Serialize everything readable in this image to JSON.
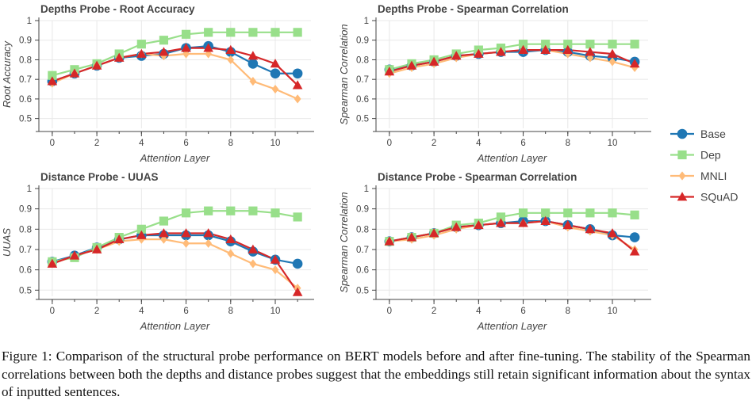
{
  "legend": [
    {
      "name": "Base",
      "color": "#1f77b4",
      "marker": "circle"
    },
    {
      "name": "Dep",
      "color": "#98df8a",
      "marker": "square"
    },
    {
      "name": "MNLI",
      "color": "#ffbb78",
      "marker": "diamond"
    },
    {
      "name": "SQuAD",
      "color": "#d62728",
      "marker": "triangle"
    }
  ],
  "caption": {
    "label": "Figure 1:",
    "text": "Comparison of the structural probe performance on BERT models before and after fine-tuning. The stability of the Spearman correlations between both the depths and distance probes suggest that the embeddings still retain significant information about the syntax of inputted sentences."
  },
  "chart_data": [
    {
      "type": "line",
      "title": "Depths Probe - Root Accuracy",
      "xlabel": "Attention Layer",
      "ylabel": "Root Accuracy",
      "x": [
        0,
        1,
        2,
        3,
        4,
        5,
        6,
        7,
        8,
        9,
        10,
        11
      ],
      "xticks": [
        "0",
        "2",
        "4",
        "6",
        "8",
        "10"
      ],
      "yticks": [
        "0.5",
        "0.6",
        "0.7",
        "0.8",
        "0.9",
        "1"
      ],
      "ylim": [
        0.45,
        1.0
      ],
      "xlim": [
        -0.6,
        11.6
      ],
      "series": [
        {
          "name": "Base",
          "values": [
            0.69,
            0.73,
            0.77,
            0.81,
            0.82,
            0.83,
            0.86,
            0.87,
            0.84,
            0.78,
            0.73,
            0.73
          ]
        },
        {
          "name": "Dep",
          "values": [
            0.72,
            0.75,
            0.78,
            0.83,
            0.88,
            0.9,
            0.93,
            0.94,
            0.94,
            0.94,
            0.94,
            0.94
          ]
        },
        {
          "name": "MNLI",
          "values": [
            0.68,
            0.73,
            0.77,
            0.81,
            0.83,
            0.82,
            0.83,
            0.83,
            0.8,
            0.69,
            0.65,
            0.6
          ]
        },
        {
          "name": "SQuAD",
          "values": [
            0.69,
            0.73,
            0.77,
            0.81,
            0.83,
            0.84,
            0.86,
            0.86,
            0.85,
            0.82,
            0.78,
            0.67
          ]
        }
      ]
    },
    {
      "type": "line",
      "title": "Depths Probe - Spearman Correlation",
      "xlabel": "Attention Layer",
      "ylabel": "Spearman Correlation",
      "x": [
        0,
        1,
        2,
        3,
        4,
        5,
        6,
        7,
        8,
        9,
        10,
        11
      ],
      "xticks": [
        "0",
        "2",
        "4",
        "6",
        "8",
        "10"
      ],
      "yticks": [
        "0.5",
        "0.6",
        "0.7",
        "0.8",
        "0.9",
        "1"
      ],
      "ylim": [
        0.45,
        1.0
      ],
      "xlim": [
        -0.6,
        11.6
      ],
      "series": [
        {
          "name": "Base",
          "values": [
            0.75,
            0.77,
            0.79,
            0.82,
            0.83,
            0.84,
            0.84,
            0.85,
            0.84,
            0.82,
            0.81,
            0.79
          ]
        },
        {
          "name": "Dep",
          "values": [
            0.75,
            0.78,
            0.8,
            0.83,
            0.85,
            0.86,
            0.88,
            0.88,
            0.88,
            0.88,
            0.88,
            0.88
          ]
        },
        {
          "name": "MNLI",
          "values": [
            0.73,
            0.76,
            0.78,
            0.81,
            0.83,
            0.84,
            0.85,
            0.85,
            0.83,
            0.81,
            0.79,
            0.76
          ]
        },
        {
          "name": "SQuAD",
          "values": [
            0.74,
            0.77,
            0.79,
            0.82,
            0.83,
            0.84,
            0.85,
            0.85,
            0.85,
            0.84,
            0.83,
            0.78
          ]
        }
      ]
    },
    {
      "type": "line",
      "title": "Distance Probe - UUAS",
      "xlabel": "Attention Layer",
      "ylabel": "UUAS",
      "x": [
        0,
        1,
        2,
        3,
        4,
        5,
        6,
        7,
        8,
        9,
        10,
        11
      ],
      "xticks": [
        "0",
        "2",
        "4",
        "6",
        "8",
        "10"
      ],
      "yticks": [
        "0.5",
        "0.6",
        "0.7",
        "0.8",
        "0.9",
        "1"
      ],
      "ylim": [
        0.47,
        1.0
      ],
      "xlim": [
        -0.6,
        11.6
      ],
      "series": [
        {
          "name": "Base",
          "values": [
            0.64,
            0.67,
            0.71,
            0.75,
            0.77,
            0.77,
            0.77,
            0.77,
            0.74,
            0.69,
            0.65,
            0.63
          ]
        },
        {
          "name": "Dep",
          "values": [
            0.64,
            0.66,
            0.71,
            0.76,
            0.8,
            0.84,
            0.88,
            0.89,
            0.89,
            0.89,
            0.88,
            0.86
          ]
        },
        {
          "name": "MNLI",
          "values": [
            0.63,
            0.67,
            0.7,
            0.74,
            0.75,
            0.75,
            0.73,
            0.73,
            0.68,
            0.63,
            0.6,
            0.51
          ]
        },
        {
          "name": "SQuAD",
          "values": [
            0.63,
            0.67,
            0.7,
            0.75,
            0.77,
            0.78,
            0.78,
            0.78,
            0.75,
            0.7,
            0.65,
            0.49
          ]
        }
      ]
    },
    {
      "type": "line",
      "title": "Distance Probe - Spearman Correlation",
      "xlabel": "Attention Layer",
      "ylabel": "Spearman Correlation",
      "x": [
        0,
        1,
        2,
        3,
        4,
        5,
        6,
        7,
        8,
        9,
        10,
        11
      ],
      "xticks": [
        "0",
        "2",
        "4",
        "6",
        "8",
        "10"
      ],
      "yticks": [
        "0.5",
        "0.6",
        "0.7",
        "0.8",
        "0.9",
        "1"
      ],
      "ylim": [
        0.47,
        1.0
      ],
      "xlim": [
        -0.6,
        11.6
      ],
      "series": [
        {
          "name": "Base",
          "values": [
            0.74,
            0.76,
            0.78,
            0.81,
            0.82,
            0.83,
            0.84,
            0.84,
            0.82,
            0.8,
            0.77,
            0.76
          ]
        },
        {
          "name": "Dep",
          "values": [
            0.74,
            0.76,
            0.78,
            0.82,
            0.83,
            0.86,
            0.88,
            0.88,
            0.88,
            0.88,
            0.88,
            0.87
          ]
        },
        {
          "name": "MNLI",
          "values": [
            0.74,
            0.75,
            0.77,
            0.8,
            0.82,
            0.83,
            0.83,
            0.84,
            0.81,
            0.79,
            0.77,
            0.7
          ]
        },
        {
          "name": "SQuAD",
          "values": [
            0.74,
            0.76,
            0.78,
            0.81,
            0.82,
            0.83,
            0.83,
            0.84,
            0.82,
            0.8,
            0.78,
            0.69
          ]
        }
      ]
    }
  ]
}
